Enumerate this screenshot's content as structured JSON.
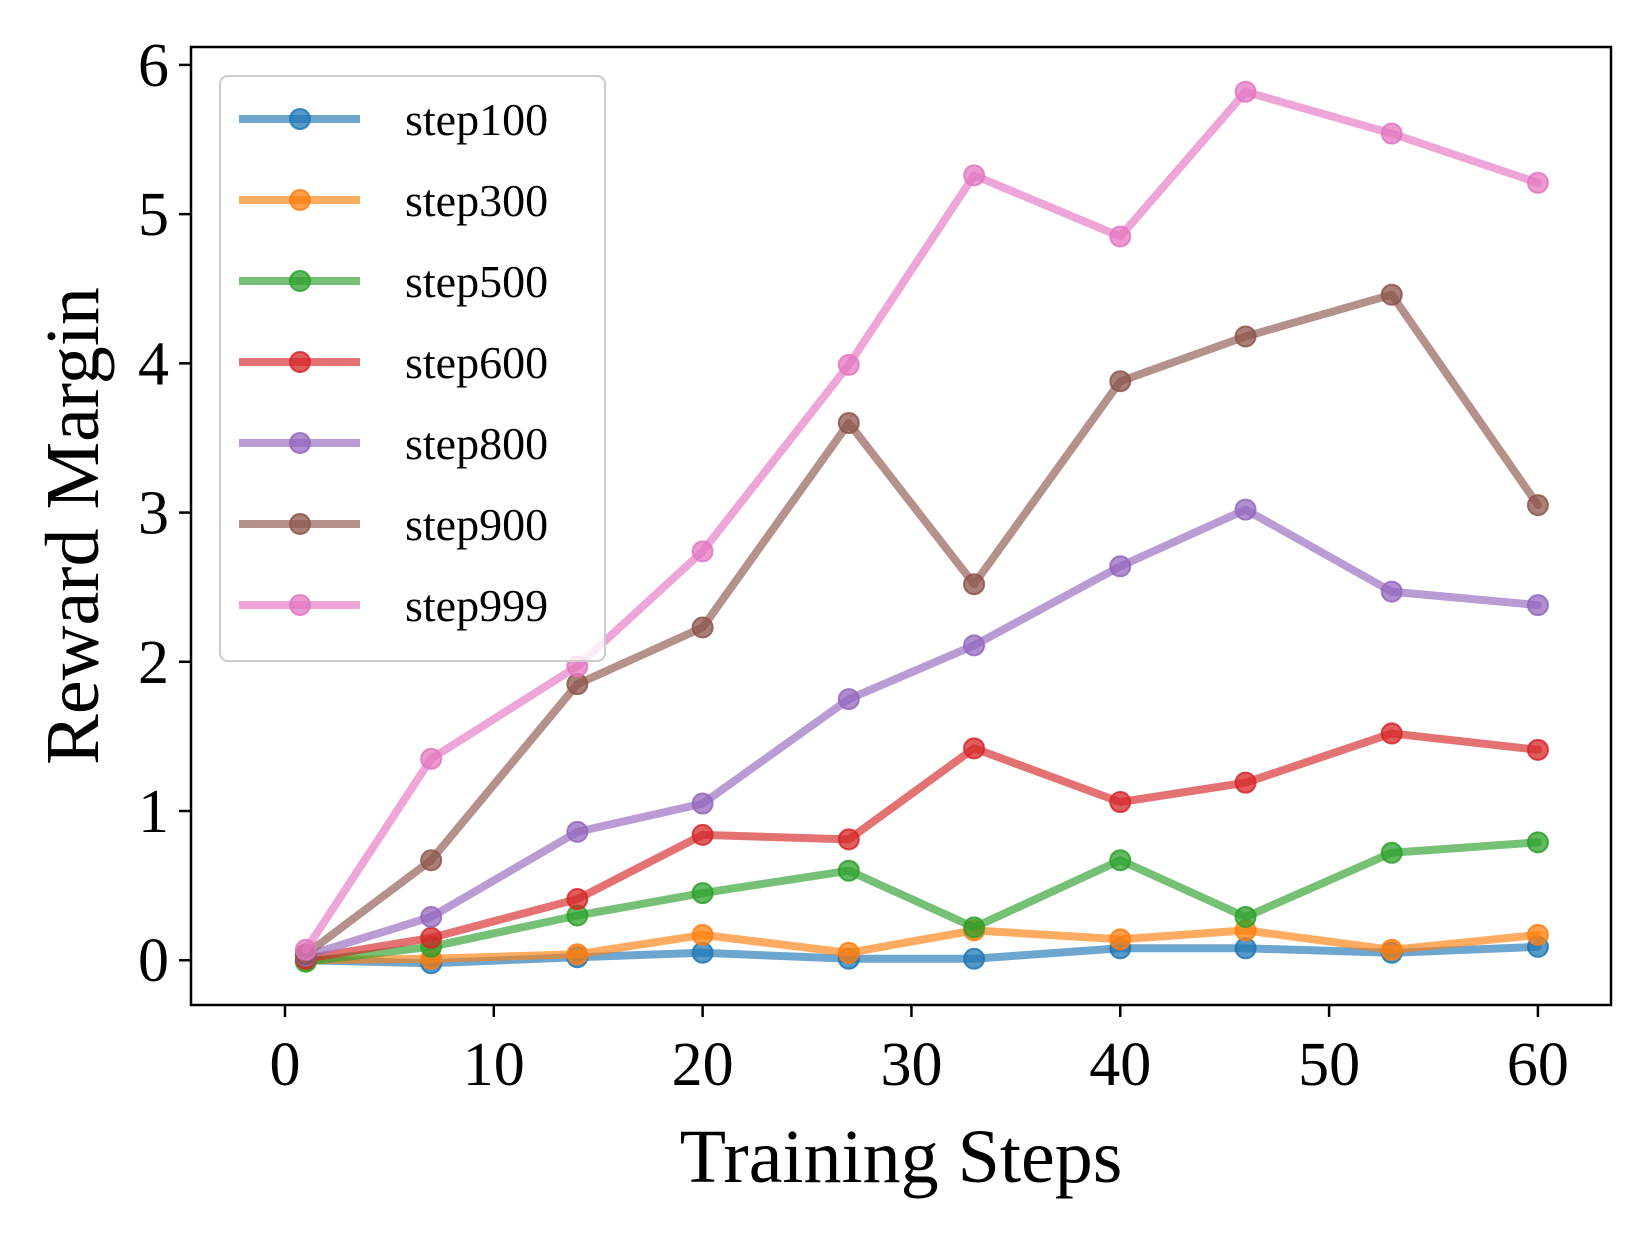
{
  "chart_data": {
    "type": "line",
    "title": "",
    "xlabel": "Training Steps",
    "ylabel": "Reward Margin",
    "xlim": [
      -4.5,
      63.5
    ],
    "ylim": [
      -0.3,
      6.12
    ],
    "xticks": [
      0,
      10,
      20,
      30,
      40,
      50,
      60
    ],
    "yticks": [
      0,
      1,
      2,
      3,
      4,
      5,
      6
    ],
    "grid": false,
    "legend_position": "upper-left",
    "x": [
      1,
      7,
      14,
      20,
      27,
      33,
      40,
      46,
      53,
      60
    ],
    "series": [
      {
        "name": "step100",
        "color": "#1f77b4",
        "values": [
          0.0,
          -0.02,
          0.02,
          0.05,
          0.01,
          0.01,
          0.08,
          0.08,
          0.05,
          0.09
        ]
      },
      {
        "name": "step300",
        "color": "#ff7f0e",
        "values": [
          0.0,
          0.01,
          0.04,
          0.17,
          0.05,
          0.2,
          0.14,
          0.2,
          0.07,
          0.17
        ]
      },
      {
        "name": "step500",
        "color": "#2ca02c",
        "values": [
          -0.01,
          0.09,
          0.3,
          0.45,
          0.6,
          0.22,
          0.67,
          0.29,
          0.72,
          0.79
        ]
      },
      {
        "name": "step600",
        "color": "#d62728",
        "values": [
          0.01,
          0.15,
          0.41,
          0.84,
          0.81,
          1.42,
          1.06,
          1.19,
          1.52,
          1.41
        ]
      },
      {
        "name": "step800",
        "color": "#9467bd",
        "values": [
          0.03,
          0.29,
          0.86,
          1.05,
          1.75,
          2.11,
          2.64,
          3.02,
          2.47,
          2.38
        ]
      },
      {
        "name": "step900",
        "color": "#8c564b",
        "values": [
          0.04,
          0.67,
          1.85,
          2.23,
          3.6,
          2.52,
          3.88,
          4.18,
          4.46,
          3.05
        ]
      },
      {
        "name": "step999",
        "color": "#e377c2",
        "values": [
          0.07,
          1.35,
          1.97,
          2.74,
          3.99,
          5.26,
          4.85,
          5.82,
          5.54,
          5.21
        ]
      }
    ]
  }
}
